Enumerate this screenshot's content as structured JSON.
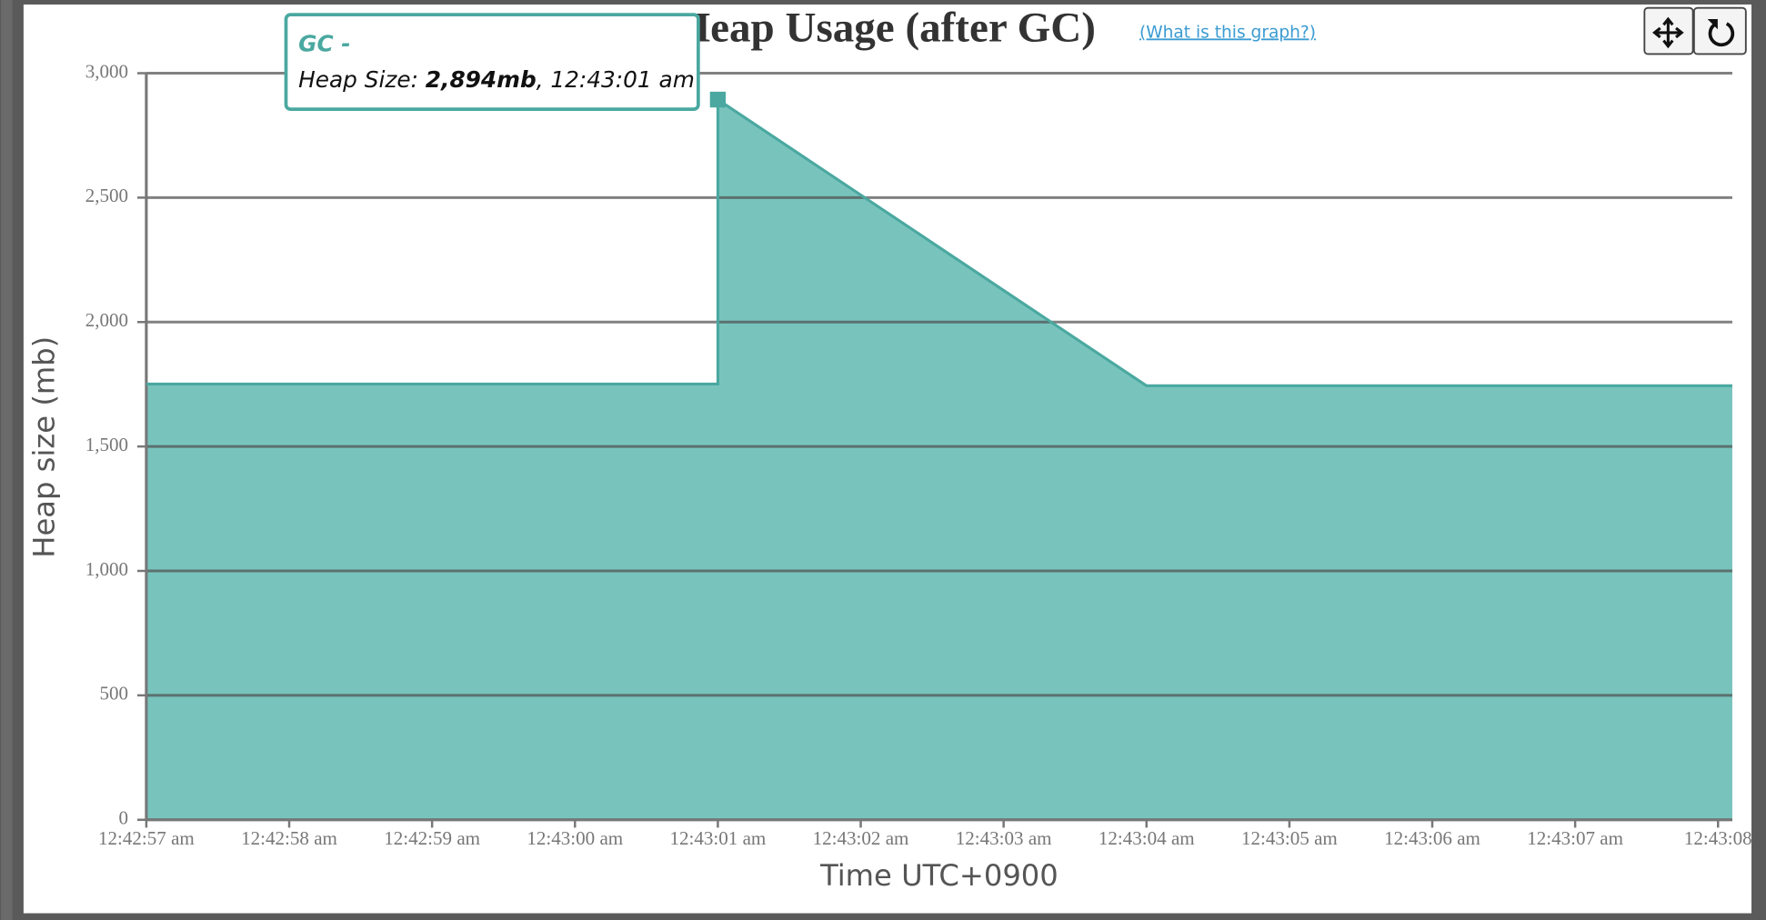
{
  "chart_data": {
    "type": "area",
    "title": "Heap Usage (after GC)",
    "link": "(What is this graph?)",
    "x_label": "Time UTC+0900",
    "y_label": "Heap size (mb)",
    "x": [
      2577,
      2578,
      2581,
      2581,
      2584,
      2587,
      2588.1
    ],
    "values": [
      1751,
      1751,
      1751,
      2894,
      1744,
      1744,
      1744
    ],
    "color": "#4aa8a0",
    "fill_color": "#78c4bd",
    "xlim": [
      2577,
      2588.1
    ],
    "xticks": [
      {
        "value": 2577,
        "label": "12:42:57 am"
      },
      {
        "value": 2578,
        "label": "12:42:58 am"
      },
      {
        "value": 2579,
        "label": "12:42:59 am"
      },
      {
        "value": 2580,
        "label": "12:43:00 am"
      },
      {
        "value": 2581,
        "label": "12:43:01 am"
      },
      {
        "value": 2582,
        "label": "12:43:02 am"
      },
      {
        "value": 2583,
        "label": "12:43:03 am"
      },
      {
        "value": 2584,
        "label": "12:43:04 am"
      },
      {
        "value": 2585,
        "label": "12:43:05 am"
      },
      {
        "value": 2586,
        "label": "12:43:06 am"
      },
      {
        "value": 2587,
        "label": "12:43:07 am"
      },
      {
        "value": 2588,
        "label": "12:43:08"
      }
    ],
    "ylim": [
      0,
      3000
    ],
    "yticks": [
      {
        "value": 0,
        "label": "0"
      },
      {
        "value": 500,
        "label": "500"
      },
      {
        "value": 1000,
        "label": "1,000"
      },
      {
        "value": 1500,
        "label": "1,500"
      },
      {
        "value": 2000,
        "label": "2,000"
      },
      {
        "value": 2500,
        "label": "2,500"
      },
      {
        "value": 3000,
        "label": "3,000"
      }
    ],
    "grid": true,
    "tooltip": {
      "title": "GC -",
      "text": [
        "Heap Size: ",
        "2,894mb",
        ", 12:43:01 am"
      ],
      "point": 3
    }
  }
}
